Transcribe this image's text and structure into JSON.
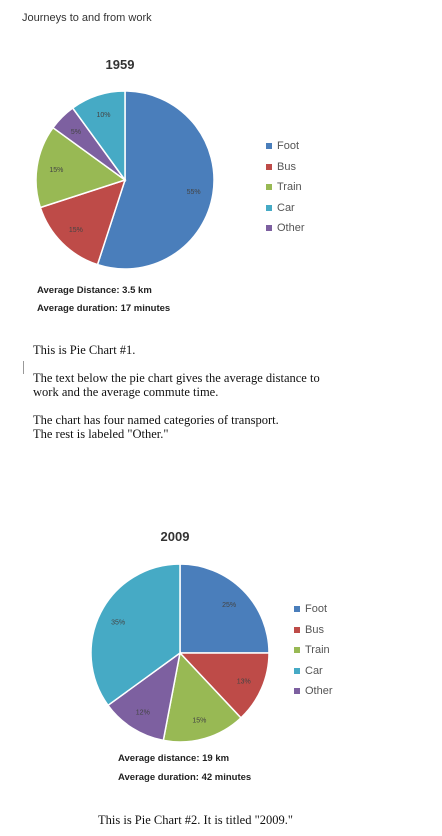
{
  "page_title": "Journeys to and from work",
  "colors": {
    "Foot": "#4a7ebb",
    "Bus": "#be4b48",
    "Train": "#98b954",
    "Car": "#46aac5",
    "Other": "#7d60a0"
  },
  "chart_data": [
    {
      "type": "pie",
      "title": "1959",
      "legend_position": "right",
      "categories": [
        "Foot",
        "Bus",
        "Train",
        "Car",
        "Other"
      ],
      "values": [
        55,
        15,
        15,
        10,
        5
      ],
      "labels": [
        "55%",
        "15%",
        "15%",
        "10%",
        "5%"
      ]
    },
    {
      "type": "pie",
      "title": "2009",
      "legend_position": "right",
      "categories": [
        "Foot",
        "Bus",
        "Train",
        "Car",
        "Other"
      ],
      "values": [
        25,
        13,
        15,
        35,
        12
      ],
      "labels": [
        "25%",
        "13%",
        "15%",
        "35%",
        "12%"
      ]
    }
  ],
  "chart1": {
    "distance": "Average Distance: 3.5 km",
    "duration": "Average duration: 17 minutes"
  },
  "chart2": {
    "distance": "Average distance: 19 km",
    "duration": "Average duration: 42 minutes"
  },
  "desc1": {
    "line1": "This is Pie Chart #1.",
    "line2": "The text below the pie chart gives the average distance to",
    "line3": "work and the average commute time.",
    "line4": "The chart has four named categories of transport.",
    "line5": "The rest is labeled \"Other.\""
  },
  "desc2": {
    "line1": "This is Pie Chart #2. It is titled \"2009.\""
  }
}
